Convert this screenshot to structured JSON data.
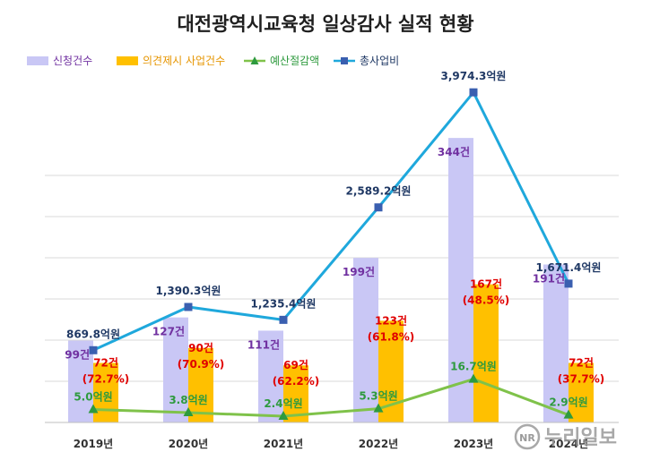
{
  "chart_data": {
    "type": "bar",
    "title": "대전광역시교육청 일상감사 실적 현황",
    "categories": [
      "2019년",
      "2020년",
      "2021년",
      "2022년",
      "2023년",
      "2024년"
    ],
    "grid": true,
    "legend_position": "top-left",
    "series": [
      {
        "name": "신청건수",
        "type": "bar",
        "color": "#c9c7f5",
        "values": [
          99,
          127,
          111,
          199,
          344,
          191
        ],
        "labels": [
          "99건",
          "127건",
          "111건",
          "199건",
          "344건",
          "191건"
        ],
        "label_color": "#7030a0"
      },
      {
        "name": "의견제시 사업건수",
        "type": "bar",
        "color": "#ffc000",
        "values": [
          72,
          90,
          69,
          123,
          167,
          72
        ],
        "labels": [
          "72건",
          "90건",
          "69건",
          "123건",
          "167건",
          "72건"
        ],
        "sublabels": [
          "(72.7%)",
          "(70.9%)",
          "(62.2%)",
          "(61.8%)",
          "(48.5%)",
          "(37.7%)"
        ],
        "label_color": "#e00000"
      },
      {
        "name": "예산절감액",
        "type": "line",
        "color": "#7fc24a",
        "marker": "triangle",
        "values": [
          5.0,
          3.8,
          2.4,
          5.3,
          16.7,
          2.9
        ],
        "labels": [
          "5.0억원",
          "3.8억원",
          "2.4억원",
          "5.3억원",
          "16.7억원",
          "2.9억원"
        ],
        "label_color": "#2e9a3e"
      },
      {
        "name": "총사업비",
        "type": "line",
        "color": "#1fa8dc",
        "marker_color": "#3a5fb0",
        "marker": "square",
        "values": [
          869.8,
          1390.3,
          1235.4,
          2589.2,
          3974.3,
          1671.4
        ],
        "labels": [
          "869.8억원",
          "1,390.3억원",
          "1,235.4억원",
          "2,589.2억원",
          "3,974.3억원",
          "1,671.4억원"
        ],
        "label_color": "#1f3864"
      }
    ]
  },
  "watermark": {
    "symbol": "NR",
    "text": "누리일보"
  }
}
